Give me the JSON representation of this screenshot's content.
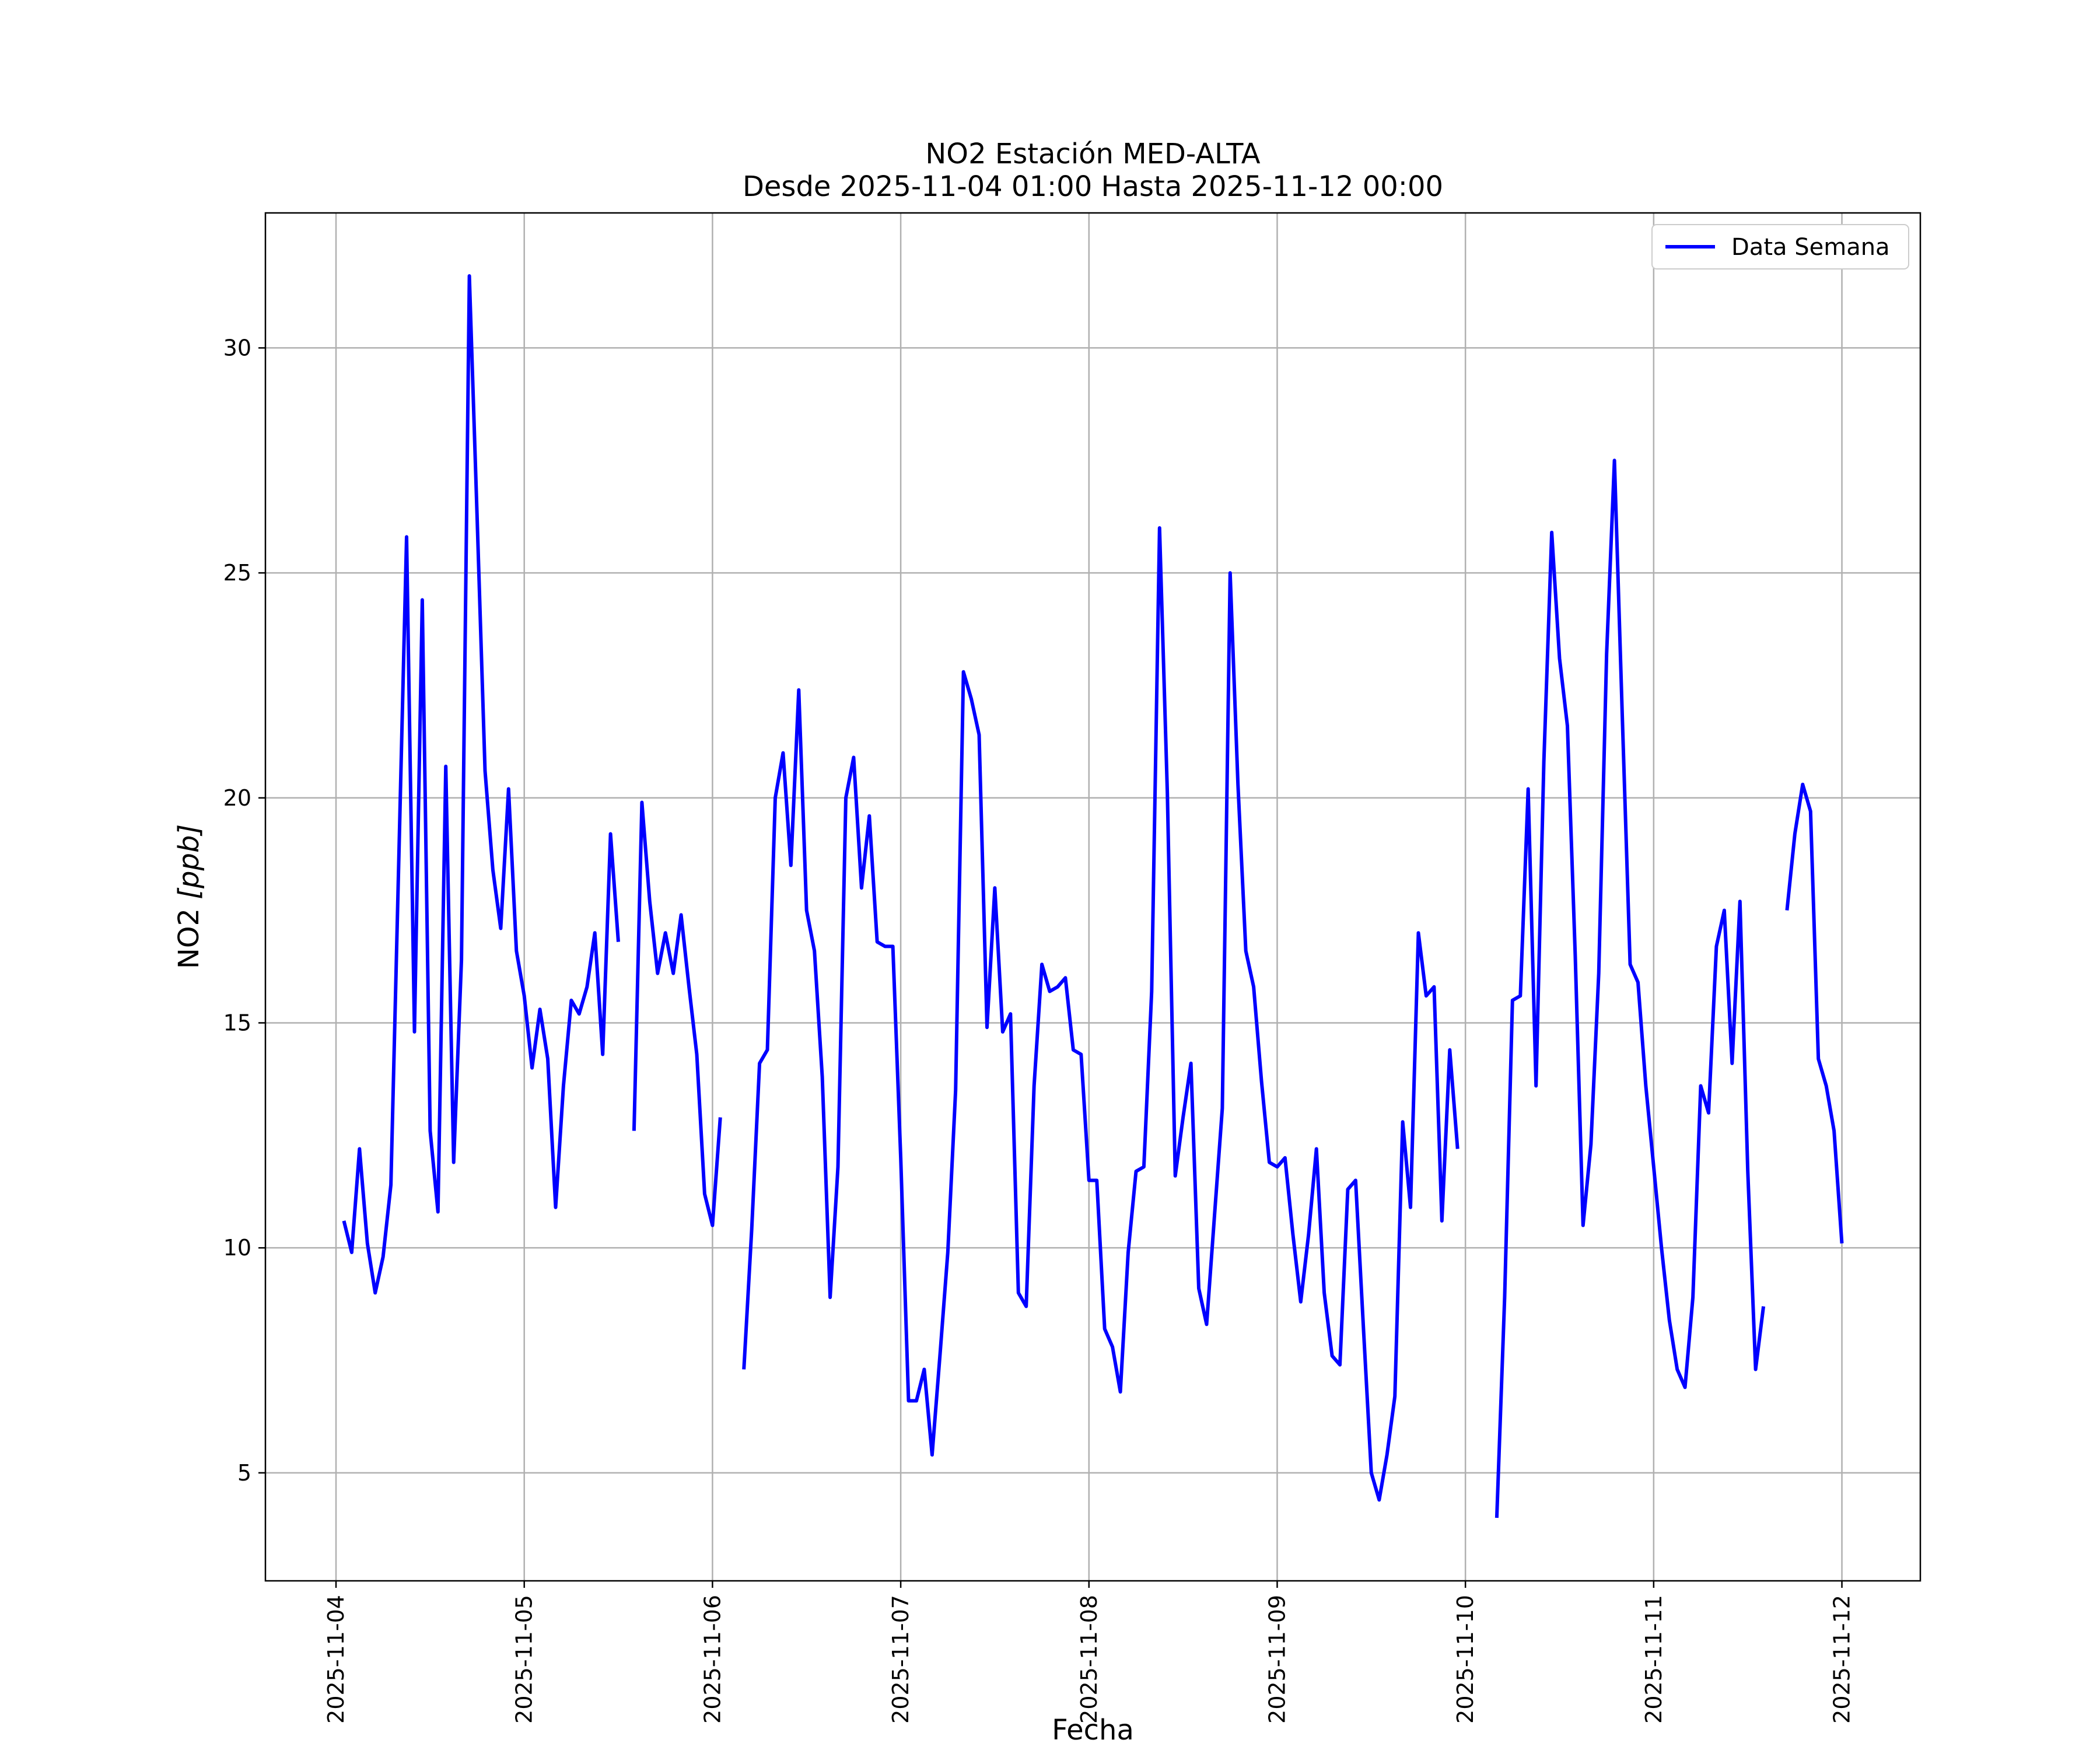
{
  "chart_data": {
    "type": "line",
    "title": "NO2 Estación MED-ALTA",
    "subtitle": "Desde 2025-11-04 01:00 Hasta 2025-11-12 00:00",
    "xlabel": "Fecha",
    "ylabel_main": "NO2 ",
    "ylabel_unit": "[ppb]",
    "xlim": [
      "2025-11-03 15:00",
      "2025-11-12 10:00"
    ],
    "ylim": [
      2.6,
      33.0
    ],
    "grid": true,
    "legend_position": "upper right",
    "x_ticks": [
      "2025-11-04",
      "2025-11-05",
      "2025-11-06",
      "2025-11-07",
      "2025-11-08",
      "2025-11-09",
      "2025-11-10",
      "2025-11-11",
      "2025-11-12"
    ],
    "y_ticks": [
      5,
      10,
      15,
      20,
      25,
      30
    ],
    "y_tick_labels": [
      "5",
      "10",
      "15",
      "20",
      "25",
      "30"
    ],
    "series": [
      {
        "name": "Data Semana",
        "color": "#0000ff",
        "segments": [
          {
            "start": "2025-11-04 01:00",
            "interval_hours": 1,
            "values": [
              10.6,
              9.9,
              12.2,
              10.1,
              9.0,
              9.8,
              11.4,
              18.6,
              25.8,
              14.8,
              24.4,
              12.6,
              10.8,
              20.7,
              11.9,
              16.4,
              31.6,
              26.2,
              20.6,
              18.4,
              17.1,
              20.2,
              16.6,
              15.6,
              14.0,
              15.3,
              14.2,
              10.9,
              13.6,
              15.5,
              15.2,
              15.8,
              17.0,
              14.3,
              19.2,
              16.8
            ]
          },
          {
            "start": "2025-11-05 14:00",
            "interval_hours": 1,
            "values": [
              12.6,
              19.9,
              17.7,
              16.1,
              17.0,
              16.1,
              17.4,
              15.8,
              14.3,
              11.2,
              10.5,
              12.9
            ]
          },
          {
            "start": "2025-11-06 04:00",
            "interval_hours": 1,
            "values": [
              7.3,
              10.4,
              14.1,
              14.4,
              20.0,
              21.0,
              18.5,
              22.4,
              17.5,
              16.6,
              13.8,
              8.9,
              11.8,
              20.0,
              20.9,
              18.0,
              19.6,
              16.8,
              16.7,
              16.7,
              12.0,
              6.6,
              6.6,
              7.3,
              5.4,
              7.6,
              9.9,
              13.5,
              22.8,
              22.2,
              21.4,
              14.9,
              18.0,
              14.8,
              15.2,
              9.0,
              8.7,
              13.6,
              16.3,
              15.7,
              15.8,
              16.0,
              14.4,
              14.3,
              11.5,
              11.5,
              8.2,
              7.8,
              6.8,
              9.9,
              11.7,
              11.8,
              15.7,
              26.0,
              20.1,
              11.6,
              12.9,
              14.1,
              9.1,
              8.3,
              10.7,
              13.1,
              25.0,
              20.3,
              16.6,
              15.8,
              13.7,
              11.9,
              11.8,
              12.0,
              10.3,
              8.8,
              10.3,
              12.2,
              9.0,
              7.6,
              7.4,
              11.3,
              11.5,
              8.2,
              5.0,
              4.4,
              5.4,
              6.7,
              12.8,
              10.9,
              17.0,
              15.6,
              15.8,
              10.6,
              14.4,
              12.2
            ]
          },
          {
            "start": "2025-11-10 04:00",
            "interval_hours": 1,
            "values": [
              4.0,
              8.9,
              15.5,
              15.6,
              20.2,
              13.6,
              20.8,
              25.9,
              23.1,
              21.6,
              16.5,
              10.5,
              12.3,
              16.1,
              23.2,
              27.5,
              21.8,
              16.3,
              15.9,
              13.6,
              11.8,
              10.0,
              8.4,
              7.3,
              6.9,
              8.9,
              13.6,
              13.0,
              16.7,
              17.5,
              14.1,
              17.7,
              11.7,
              7.3,
              8.7
            ]
          },
          {
            "start": "2025-11-11 17:00",
            "interval_hours": 1,
            "values": [
              17.5,
              19.2,
              20.3,
              19.7,
              14.2,
              13.6,
              12.6,
              10.1
            ]
          }
        ]
      }
    ]
  }
}
